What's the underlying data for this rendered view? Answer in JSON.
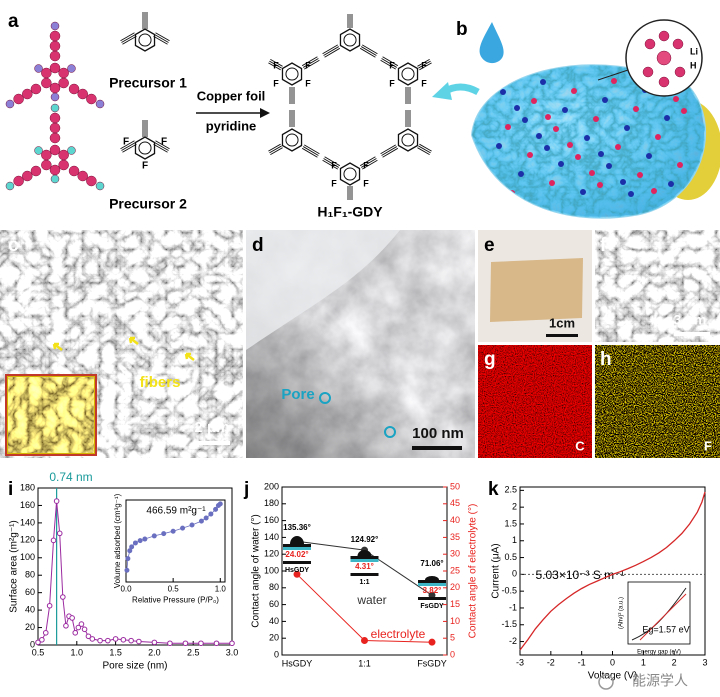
{
  "panel_labels": [
    "a",
    "b",
    "c",
    "d",
    "e",
    "f",
    "g",
    "h",
    "i",
    "j",
    "k"
  ],
  "scheme": {
    "precursor1": "Precursor 1",
    "precursor2": "Precursor 2",
    "condition1": "Copper foil",
    "condition2": "pyridine",
    "product": "H₁F₁-GDY",
    "fluorine": "F",
    "lithium": "Li",
    "hydrogen": "H"
  },
  "micrographs": {
    "fibers": "fibers",
    "scale_c": "2 μm",
    "pore": "Pore",
    "scale_d": "100 nm",
    "scale_e": "1cm",
    "scale_f": "3 μm",
    "map_g": "C",
    "map_h": "F"
  },
  "watermark": "能源学人",
  "chart_data": [
    {
      "type": "line",
      "xlabel": "Pore size (nm)",
      "ylabel": "Surface area (m²g⁻¹)",
      "annotation": "0.74 nm",
      "marker_x": 0.74,
      "x": [
        0.5,
        0.55,
        0.6,
        0.65,
        0.7,
        0.74,
        0.78,
        0.82,
        0.86,
        0.9,
        0.94,
        0.98,
        1.02,
        1.06,
        1.1,
        1.15,
        1.2,
        1.3,
        1.4,
        1.5,
        1.6,
        1.7,
        1.8,
        2.0,
        2.2,
        2.4,
        2.6,
        2.8,
        3.0
      ],
      "series": [
        {
          "color": "#9b2aa0",
          "values": [
            3,
            6,
            14,
            45,
            120,
            165,
            128,
            55,
            22,
            33,
            31,
            14,
            20,
            24,
            18,
            10,
            7,
            5,
            5,
            7,
            6,
            5,
            4,
            3,
            2,
            2,
            2,
            2,
            2
          ]
        }
      ],
      "xlim": [
        0.5,
        3.0
      ],
      "ylim": [
        0,
        180
      ],
      "xticks": [
        0.5,
        {
          "value": 1,
          "label": "1.0"
        },
        1.5,
        {
          "value": 2,
          "label": "2.0"
        },
        2.5,
        {
          "value": 3,
          "label": "3.0"
        }
      ],
      "yticks": [
        0,
        20,
        40,
        60,
        80,
        100,
        120,
        140,
        160,
        180
      ],
      "markers": true
    },
    {
      "type": "line",
      "xlabel": "Relative Pressure (P/P₀)",
      "ylabel": "Volume adsorbed (cm³g⁻¹)",
      "annotation": "466.59 m²g⁻¹",
      "x": [
        0.01,
        0.02,
        0.04,
        0.06,
        0.1,
        0.15,
        0.2,
        0.3,
        0.4,
        0.5,
        0.6,
        0.7,
        0.8,
        0.85,
        0.9,
        0.95,
        0.98,
        1.0
      ],
      "series": [
        {
          "color": "#6a6fc0",
          "values": [
            0.15,
            0.3,
            0.4,
            0.45,
            0.5,
            0.53,
            0.55,
            0.59,
            0.62,
            0.65,
            0.69,
            0.73,
            0.78,
            0.82,
            0.87,
            0.93,
            0.98,
            1.0
          ]
        }
      ],
      "xlim": [
        0,
        1.05
      ],
      "ylim": [
        0,
        1.05
      ],
      "xticks": [
        {
          "value": 0,
          "label": "0.0"
        },
        0.5,
        {
          "value": 1,
          "label": "1.0"
        }
      ],
      "markers": true
    },
    {
      "type": "line",
      "categories": [
        "HsGDY",
        "1:1",
        "FsGDY"
      ],
      "ylabel": "Contact angle of water (°)",
      "y2label": "Contact angle of electrolyte (°)",
      "series": [
        {
          "name": "water",
          "color": "#333333",
          "values": [
            135.36,
            124.92,
            71.06
          ],
          "value_labels": [
            "135.36°",
            "124.92°",
            "71.06°"
          ]
        },
        {
          "name": "electrolyte",
          "color": "#e8231f",
          "axis": "y2",
          "values": [
            24.02,
            4.31,
            3.82
          ],
          "value_labels": [
            "24.02°",
            "4.31°",
            "3.82°"
          ]
        }
      ],
      "ylim": [
        0,
        200
      ],
      "yticks": [
        0,
        20,
        40,
        60,
        80,
        100,
        120,
        140,
        160,
        180,
        200
      ],
      "y2lim": [
        0,
        50
      ],
      "y2ticks": [
        0,
        5,
        10,
        15,
        20,
        25,
        30,
        35,
        40,
        45,
        50
      ],
      "inset_labels": [
        "HsGDY",
        "1:1",
        "FsGDY"
      ],
      "markers": true
    },
    {
      "type": "line",
      "xlabel": "Voltage (V)",
      "ylabel": "Current (μA)",
      "annotation": "5.03×10⁻³ S m⁻¹",
      "reference_line": 0,
      "x": [
        -3,
        -2.75,
        -2.5,
        -2.25,
        -2,
        -1.75,
        -1.5,
        -1.25,
        -1,
        -0.75,
        -0.5,
        -0.25,
        0,
        0.25,
        0.5,
        0.75,
        1,
        1.25,
        1.5,
        1.75,
        2,
        2.25,
        2.5,
        2.75,
        2.9,
        3
      ],
      "series": [
        {
          "color": "#d62728",
          "values": [
            -2.25,
            -1.95,
            -1.62,
            -1.35,
            -1.1,
            -0.9,
            -0.72,
            -0.56,
            -0.42,
            -0.3,
            -0.2,
            -0.1,
            0,
            0.08,
            0.17,
            0.27,
            0.38,
            0.5,
            0.64,
            0.8,
            1.0,
            1.22,
            1.5,
            1.85,
            2.15,
            2.45
          ]
        }
      ],
      "xlim": [
        -3,
        3
      ],
      "ylim": [
        -2.4,
        2.6
      ],
      "xticks": [
        -3,
        -2,
        -1,
        0,
        1,
        2,
        3
      ],
      "yticks": [
        -2,
        -1.5,
        -1,
        -0.5,
        0,
        0.5,
        1,
        1.5,
        2,
        2.5
      ],
      "inset": {
        "xlabel": "Energy gap (eV)",
        "ylabel": "(Ahν)² (a.u.)",
        "annotation": "Eg=1.57 eV"
      }
    }
  ]
}
